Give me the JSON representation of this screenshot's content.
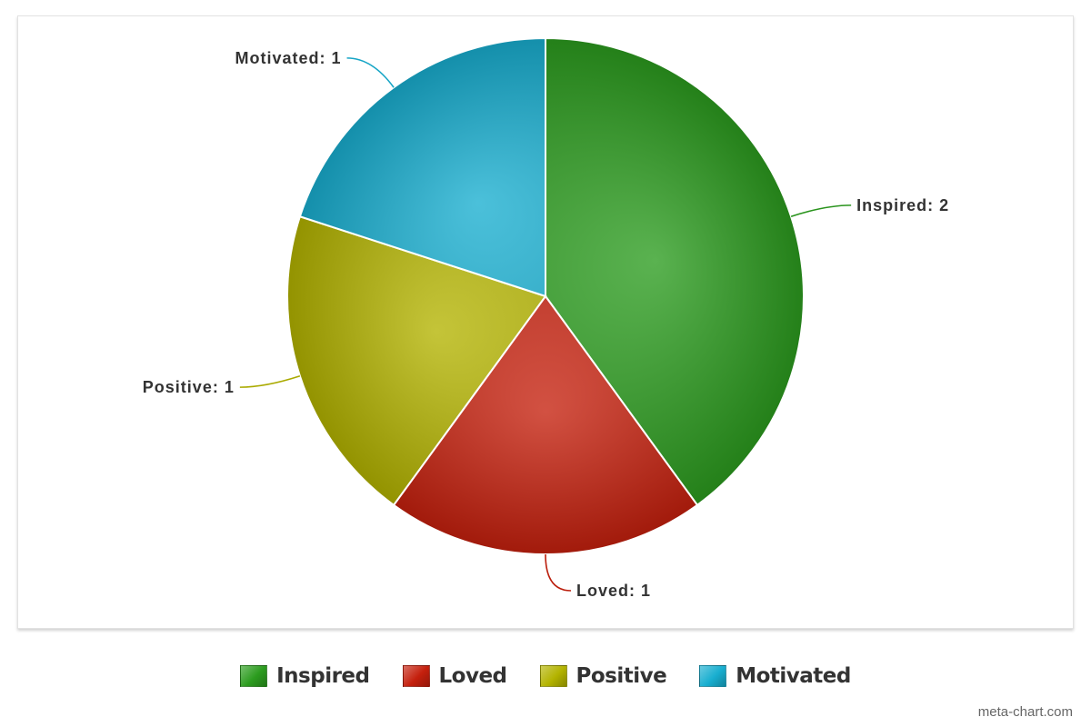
{
  "chart_data": {
    "type": "pie",
    "categories": [
      "Inspired",
      "Loved",
      "Positive",
      "Motivated"
    ],
    "values": [
      2,
      1,
      1,
      1
    ],
    "colors": [
      "#2c9c1f",
      "#c5200d",
      "#b3b300",
      "#18aed0"
    ],
    "data_labels": [
      "Inspired: 2",
      "Loved: 1",
      "Positive: 1",
      "Motivated: 1"
    ],
    "start_angle_deg": 0,
    "direction": "clockwise",
    "legend_position": "bottom"
  },
  "legend": {
    "items": [
      {
        "label": "Inspired",
        "color": "#2c9c1f"
      },
      {
        "label": "Loved",
        "color": "#c5200d"
      },
      {
        "label": "Positive",
        "color": "#b3b300"
      },
      {
        "label": "Motivated",
        "color": "#18aed0"
      }
    ]
  },
  "watermark": "meta-chart.com"
}
